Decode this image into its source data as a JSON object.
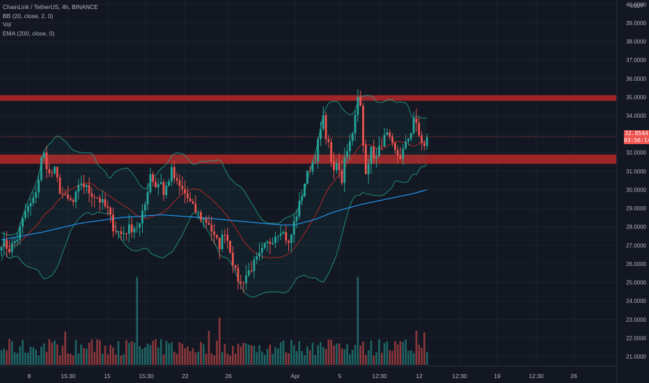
{
  "legend": {
    "symbol": "ChainLink / TetherUS, 4h, BINANCE",
    "bb": "BB (20, close, 2, 0)",
    "vol": "Vol",
    "ema": "EMA (200, close, 0)"
  },
  "axis": {
    "currency": "USDT",
    "last_price": "32.8544",
    "countdown": "03:56:14"
  },
  "colors": {
    "background": "#131722",
    "up": "#26a69a",
    "down": "#ef5350",
    "ema": "#2196f3",
    "bb_band": "#22ab94",
    "bb_basis": "#c62828",
    "zone": "#c62828"
  },
  "chart_data": {
    "type": "candlestick",
    "symbol": "ChainLink / TetherUS",
    "interval": "4h",
    "exchange": "BINANCE",
    "y_ticks": [
      21,
      22,
      23,
      24,
      25,
      26,
      27,
      28,
      29,
      30,
      31,
      32,
      33,
      34,
      35,
      36,
      37,
      38,
      39,
      40
    ],
    "y_tick_labels": [
      "21.0000",
      "22.0000",
      "23.0000",
      "24.0000",
      "25.0000",
      "26.0000",
      "27.0000",
      "28.0000",
      "29.0000",
      "30.0000",
      "31.0000",
      "32.0000",
      "33.0000",
      "34.0000",
      "35.0000",
      "36.0000",
      "37.0000",
      "38.0000",
      "39.0000",
      "40.0000"
    ],
    "ylim": [
      20.55,
      40.2
    ],
    "x_tick_labels": [
      "8",
      "15:30",
      "15",
      "15:30",
      "22",
      "26",
      "Apr",
      "5",
      "12:30",
      "12",
      "12:30",
      "19",
      "12:30",
      "26"
    ],
    "resistance_zone": [
      34.8,
      35.1
    ],
    "support_zone": [
      31.4,
      31.9
    ],
    "last_price": 32.8544,
    "price_path": [
      [
        0,
        27.2
      ],
      [
        3,
        26.8
      ],
      [
        6,
        27.4
      ],
      [
        9,
        28.8
      ],
      [
        12,
        29.4
      ],
      [
        14,
        30.6
      ],
      [
        15,
        31.6
      ],
      [
        16,
        31.9
      ],
      [
        18,
        30.8
      ],
      [
        20,
        31.0
      ],
      [
        22,
        30.0
      ],
      [
        24,
        29.5
      ],
      [
        27,
        29.3
      ],
      [
        30,
        30.4
      ],
      [
        33,
        29.9
      ],
      [
        36,
        29.6
      ],
      [
        40,
        28.9
      ],
      [
        42,
        28.0
      ],
      [
        45,
        27.6
      ],
      [
        48,
        27.9
      ],
      [
        52,
        28.1
      ],
      [
        54,
        29.2
      ],
      [
        56,
        30.9
      ],
      [
        58,
        30.2
      ],
      [
        60,
        30.5
      ],
      [
        61,
        29.7
      ],
      [
        63,
        30.6
      ],
      [
        64,
        31.0
      ],
      [
        66,
        30.3
      ],
      [
        69,
        29.8
      ],
      [
        72,
        29.0
      ],
      [
        75,
        28.5
      ],
      [
        78,
        28.2
      ],
      [
        80,
        27.4
      ],
      [
        82,
        27.0
      ],
      [
        84,
        27.8
      ],
      [
        86,
        26.8
      ],
      [
        88,
        25.5
      ],
      [
        90,
        24.9
      ],
      [
        92,
        25.4
      ],
      [
        95,
        26.0
      ],
      [
        97,
        26.4
      ],
      [
        99,
        26.9
      ],
      [
        101,
        27.2
      ],
      [
        103,
        27.6
      ],
      [
        105,
        27.9
      ],
      [
        107,
        27.4
      ],
      [
        108,
        27.0
      ],
      [
        110,
        28.2
      ],
      [
        112,
        29.2
      ],
      [
        114,
        30.4
      ],
      [
        116,
        31.2
      ],
      [
        118,
        31.8
      ],
      [
        120,
        33.2
      ],
      [
        121,
        33.8
      ],
      [
        122,
        33.0
      ],
      [
        124,
        31.7
      ],
      [
        125,
        30.8
      ],
      [
        126,
        31.4
      ],
      [
        128,
        30.5
      ],
      [
        129,
        31.9
      ],
      [
        131,
        32.6
      ],
      [
        132,
        33.3
      ],
      [
        133,
        33.9
      ],
      [
        134,
        34.9
      ],
      [
        135,
        34.4
      ],
      [
        136,
        32.4
      ],
      [
        137,
        31.1
      ],
      [
        139,
        32.1
      ],
      [
        141,
        31.7
      ],
      [
        143,
        32.6
      ],
      [
        145,
        32.9
      ],
      [
        146,
        32.6
      ],
      [
        148,
        32.0
      ],
      [
        150,
        31.8
      ],
      [
        152,
        32.4
      ],
      [
        154,
        33.2
      ],
      [
        155,
        33.9
      ],
      [
        157,
        32.9
      ],
      [
        159,
        32.3
      ],
      [
        160,
        32.85
      ]
    ],
    "ema_200": [
      [
        0,
        27.3
      ],
      [
        15,
        27.7
      ],
      [
        30,
        28.2
      ],
      [
        45,
        28.5
      ],
      [
        60,
        28.65
      ],
      [
        75,
        28.5
      ],
      [
        90,
        28.3
      ],
      [
        105,
        28.1
      ],
      [
        110,
        28.1
      ],
      [
        118,
        28.4
      ],
      [
        125,
        28.8
      ],
      [
        135,
        29.2
      ],
      [
        145,
        29.5
      ],
      [
        155,
        29.8
      ],
      [
        160,
        30.0
      ]
    ],
    "volume_levels": [
      "21.0000",
      "22.0000",
      "23.0000",
      "24.0000",
      "25.0000"
    ],
    "volume_spikes": [
      [
        51,
        25.3
      ],
      [
        82,
        23.1
      ],
      [
        134,
        25.3
      ],
      [
        156,
        22.4
      ]
    ],
    "bar_count": 161
  }
}
